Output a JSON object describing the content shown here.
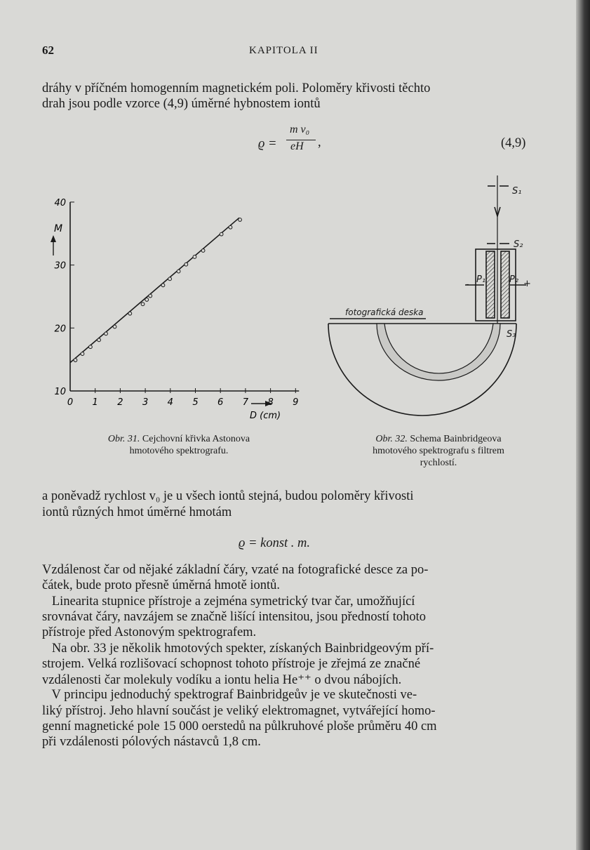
{
  "header": {
    "page_number": "62",
    "running_title": "KAPITOLA II"
  },
  "paragraphs_top": [
    "dráhy v příčném homogenním magnetickém poli. Poloměry křivosti těchto",
    "drah jsou podle vzorce (4,9) úměrné hybnostem iontů"
  ],
  "equation_1": {
    "lhs": "ϱ =",
    "numerator": "m v₀",
    "denominator": "eH",
    "trail": ",",
    "number": "(4,9)"
  },
  "chart_data": {
    "type": "scatter",
    "title": "",
    "xlabel": "D (cm)",
    "ylabel": "M",
    "xlim": [
      0,
      9
    ],
    "ylim": [
      10,
      40
    ],
    "x_ticks": [
      "0",
      "1",
      "2",
      "3",
      "4",
      "5",
      "6",
      "7",
      "8",
      "9"
    ],
    "y_ticks": [
      "10",
      "20",
      "30",
      "40"
    ],
    "grid": false,
    "points": [
      [
        0.21,
        14.9
      ],
      [
        0.49,
        15.9
      ],
      [
        0.81,
        17.0
      ],
      [
        1.15,
        18.1
      ],
      [
        1.43,
        19.1
      ],
      [
        1.78,
        20.2
      ],
      [
        2.39,
        22.3
      ],
      [
        2.9,
        23.8
      ],
      [
        3.06,
        24.5
      ],
      [
        3.2,
        25.1
      ],
      [
        3.71,
        26.8
      ],
      [
        3.98,
        27.8
      ],
      [
        4.33,
        29.0
      ],
      [
        4.63,
        30.1
      ],
      [
        4.97,
        31.3
      ],
      [
        5.31,
        32.3
      ],
      [
        6.04,
        34.9
      ],
      [
        6.4,
        36.0
      ],
      [
        6.78,
        37.2
      ]
    ],
    "fit_line": [
      [
        0,
        14.5
      ],
      [
        6.75,
        37.5
      ]
    ]
  },
  "figure_31": {
    "label": "Obr. 31.",
    "caption_1": "Cejchovní křivka Astonova",
    "caption_2": "hmotového spektrografu."
  },
  "figure_32": {
    "label": "Obr. 32.",
    "caption_1": "Schema Bainbridgeova",
    "caption_2": "hmotového spektrografu s filtrem",
    "caption_3": "rychlostí.",
    "labels": {
      "plate": "fotografická deska",
      "s1": "S₁",
      "s2": "S₂",
      "s3": "S₃",
      "p1": "P₁",
      "p2": "P₂",
      "minus": "-",
      "plus": "+"
    }
  },
  "paragraphs_mid": [
    "a poněvadž rychlost v₀ je u všech iontů stejná, budou poloměry křivosti",
    "iontů různých hmot úměrné hmotám"
  ],
  "equation_2": "ϱ = konst . m.",
  "paragraphs_bottom": [
    "Vzdálenost čar od nějaké základní čáry, vzaté na fotografické desce za po-",
    "čátek, bude proto přesně úměrná hmotě iontů.",
    "   Linearita stupnice přístroje a zejména symetrický tvar čar, umožňující",
    "srovnávat čáry, navzájem se značně lišící intensitou, jsou předností tohoto",
    "přístroje před Astonovým spektrografem.",
    "   Na obr. 33 je několik hmotových spekter, získaných Bainbridgeovým pří-",
    "strojem. Velká rozlišovací schopnost tohoto přístroje je zřejmá ze značné",
    "vzdálenosti čar molekuly vodíku a iontu helia He⁺⁺ o dvou nábojích.",
    "   V principu jednoduchý spektrograf Bainbridgeův je ve skutečnosti ve-",
    "liký přístroj. Jeho hlavní součást je veliký elektromagnet, vytvářející homo-",
    "genní magnetické pole 15 000 oerstedů na půlkruhové ploše průměru 40 cm",
    "při vzdálenosti pólových nástavců 1,8 cm."
  ]
}
